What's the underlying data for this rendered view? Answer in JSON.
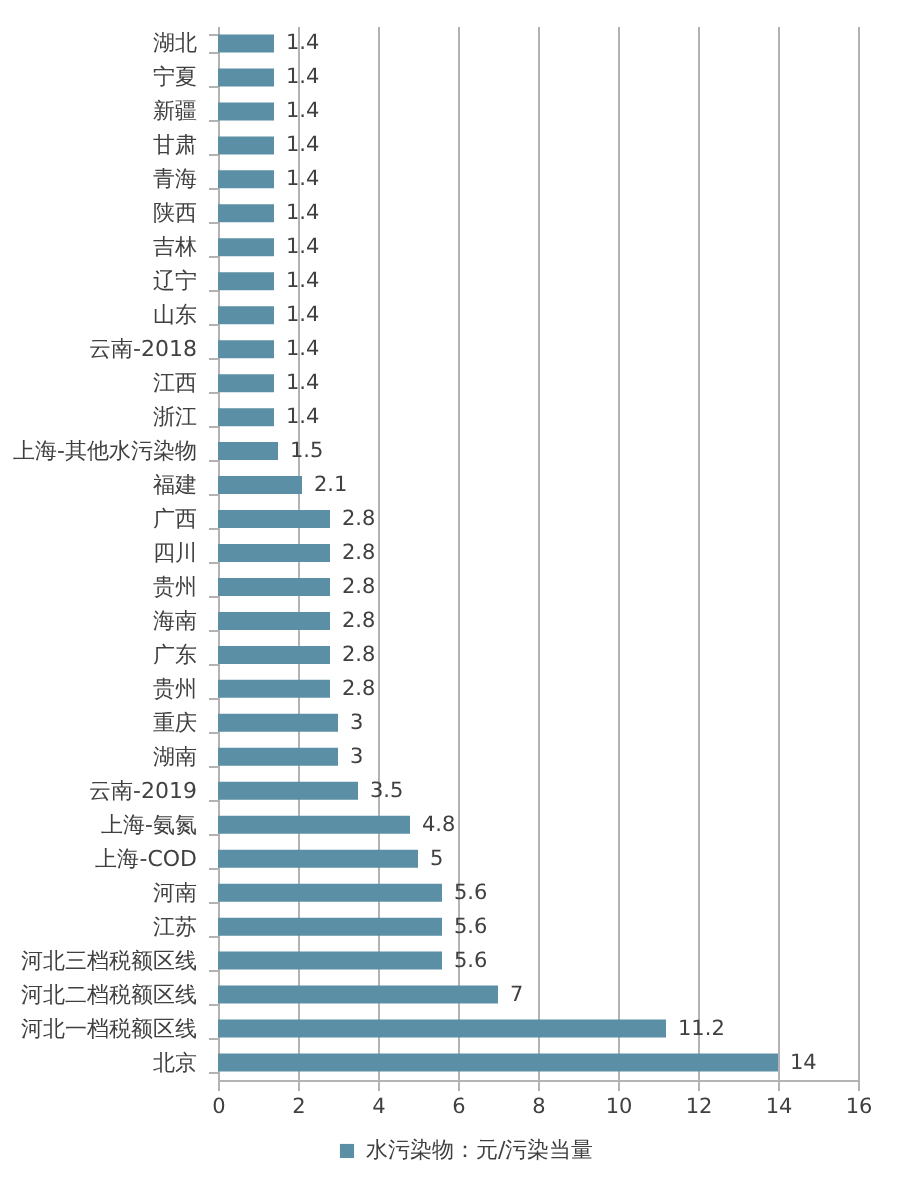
{
  "chart_data": {
    "type": "bar",
    "orientation": "horizontal",
    "categories": [
      "湖北",
      "宁夏",
      "新疆",
      "甘肃",
      "青海",
      "陕西",
      "吉林",
      "辽宁",
      "山东",
      "云南-2018",
      "江西",
      "浙江",
      "上海-其他水污染物",
      "福建",
      "广西",
      "四川",
      "贵州",
      "海南",
      "广东",
      "贵州",
      "重庆",
      "湖南",
      "云南-2019",
      "上海-氨氮",
      "上海-COD",
      "河南",
      "江苏",
      "河北三档税额区线",
      "河北二档税额区线",
      "河北一档税额区线",
      "北京"
    ],
    "series": [
      {
        "name": "水污染物：元/污染当量",
        "color": "#5b8fa5",
        "values": [
          1.4,
          1.4,
          1.4,
          1.4,
          1.4,
          1.4,
          1.4,
          1.4,
          1.4,
          1.4,
          1.4,
          1.4,
          1.5,
          2.1,
          2.8,
          2.8,
          2.8,
          2.8,
          2.8,
          2.8,
          3,
          3,
          3.5,
          4.8,
          5,
          5.6,
          5.6,
          5.6,
          7,
          11.2,
          14
        ]
      }
    ],
    "xlim": [
      0,
      16
    ],
    "xticks": [
      0,
      2,
      4,
      6,
      8,
      10,
      12,
      14,
      16
    ],
    "data_labels": true,
    "grid": "x",
    "legend": "bottom"
  }
}
